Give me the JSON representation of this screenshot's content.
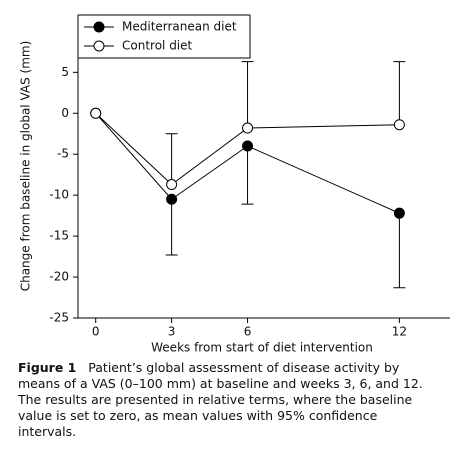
{
  "chart_data": {
    "type": "line",
    "x": [
      0,
      3,
      6,
      12
    ],
    "xlabel": "Weeks from start of diet intervention",
    "ylabel": "Change from baseline in global VAS (mm)",
    "xlim": [
      -0.7,
      14
    ],
    "xticks": [
      0,
      3,
      6,
      12
    ],
    "ylim": [
      -25,
      12
    ],
    "yticks": [
      5,
      0,
      -5,
      -10,
      -15,
      -20,
      -25
    ],
    "legend": "upper left",
    "series": [
      {
        "name": "Mediterranean diet",
        "color": "#000000",
        "marker": "filled",
        "values": [
          0,
          -10.5,
          -4,
          -12.2
        ],
        "errors_below": [
          null,
          6.8,
          7.1,
          9.1
        ]
      },
      {
        "name": "Control diet",
        "color": "#000000",
        "marker": "open",
        "values": [
          0,
          -8.7,
          -1.8,
          -1.4
        ],
        "errors_above": [
          null,
          6.2,
          8.1,
          7.7
        ]
      }
    ]
  },
  "caption": {
    "label": "Figure 1",
    "text": "Patient’s global assessment of disease activity by means of a VAS (0–100 mm) at baseline and weeks 3, 6, and 12. The results are presented in relative terms, where the baseline value is set to zero, as mean values with 95% confidence intervals."
  }
}
